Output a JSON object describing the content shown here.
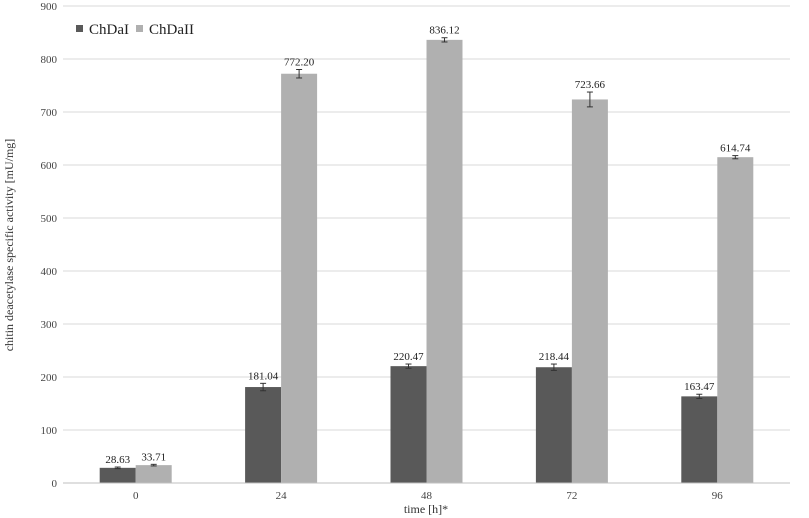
{
  "chart_data": {
    "type": "bar",
    "title": "",
    "xlabel": "time [h]*",
    "ylabel": "chitin deacetylase specific  activity [mU/mg]",
    "categories": [
      "0",
      "24",
      "48",
      "72",
      "96"
    ],
    "ylim": [
      0,
      900
    ],
    "yticks": [
      0,
      100,
      200,
      300,
      400,
      500,
      600,
      700,
      800,
      900
    ],
    "grid": true,
    "legend_position": "top-left",
    "series": [
      {
        "name": "ChDaI",
        "color": "#595959",
        "values": [
          28.63,
          181.04,
          220.47,
          218.44,
          163.47
        ],
        "labels": [
          "28.63",
          "181.04",
          "220.47",
          "218.44",
          "163.47"
        ],
        "errors": [
          1.5,
          7,
          4,
          6,
          4
        ]
      },
      {
        "name": "ChDaII",
        "color": "#b0b0b0",
        "values": [
          33.71,
          772.2,
          836.12,
          723.66,
          614.74
        ],
        "labels": [
          "33.71",
          "772.20",
          "836.12",
          "723.66",
          "614.74"
        ],
        "errors": [
          1.5,
          8,
          4,
          14,
          3
        ]
      }
    ]
  }
}
